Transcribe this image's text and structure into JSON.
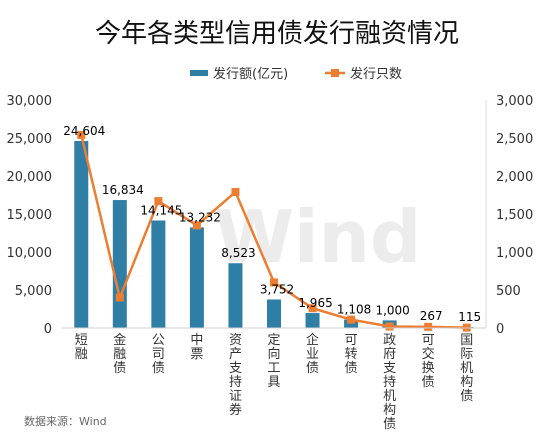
{
  "chart_data": {
    "type": "bar",
    "title": "今年各类型信用债发行融资情况",
    "source": "数据来源：Wind",
    "watermark": "Wind",
    "categories": [
      "短融",
      "金融债",
      "公司债",
      "中票",
      "资产支持证券",
      "定向工具",
      "企业债",
      "可转债",
      "政府支持机构债",
      "可交换债",
      "国际机构债"
    ],
    "series": [
      {
        "name": "发行额(亿元)",
        "type": "bar",
        "axis": "left",
        "color": "#2e7ea6",
        "values": [
          24604,
          16834,
          14145,
          13232,
          8523,
          3752,
          1965,
          1108,
          1000,
          267,
          115
        ],
        "labels": [
          "24,604",
          "16,834",
          "14,145",
          "13,232",
          "8,523",
          "3,752",
          "1,965",
          "1,108",
          "1,000",
          "267",
          "115"
        ]
      },
      {
        "name": "发行只数",
        "type": "line",
        "axis": "right",
        "color": "#ed7d31",
        "values": [
          2540,
          400,
          1670,
          1350,
          1790,
          600,
          260,
          110,
          20,
          15,
          5
        ]
      }
    ],
    "y_left": {
      "min": 0,
      "max": 30000,
      "ticks": [
        "0",
        "5,000",
        "10,000",
        "15,000",
        "20,000",
        "25,000",
        "30,000"
      ]
    },
    "y_right": {
      "min": 0,
      "max": 3000,
      "ticks": [
        "0",
        "500",
        "1,000",
        "1,500",
        "2,000",
        "2,500",
        "3,000"
      ]
    },
    "legend_position": "top"
  }
}
